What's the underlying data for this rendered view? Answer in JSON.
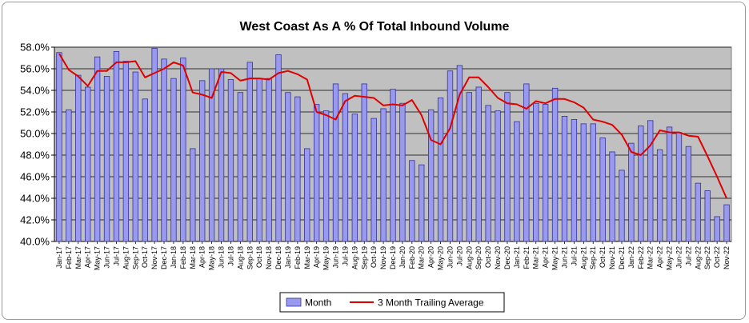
{
  "chart_data": {
    "type": "bar",
    "title": "West Coast As A %  Of Total Inbound Volume",
    "xlabel": "",
    "ylabel": "",
    "ylim": [
      40.0,
      58.0
    ],
    "yticks": [
      "40.0%",
      "42.0%",
      "44.0%",
      "46.0%",
      "48.0%",
      "50.0%",
      "52.0%",
      "54.0%",
      "56.0%",
      "58.0%"
    ],
    "grid": true,
    "legend_position": "bottom",
    "colors": {
      "bar": "#9999ee",
      "bar_edge": "#33339a",
      "line": "#e00000",
      "plot_bg": "#c0c0c0"
    },
    "categories": [
      "Jan-17",
      "Feb-17",
      "Mar-17",
      "Apr-17",
      "May-17",
      "Jun-17",
      "Jul-17",
      "Aug-17",
      "Sep-17",
      "Oct-17",
      "Nov-17",
      "Dec-17",
      "Jan-18",
      "Feb-18",
      "Mar-18",
      "Apr-18",
      "May-18",
      "Jun-18",
      "Jul-18",
      "Aug-18",
      "Sep-18",
      "Oct-18",
      "Nov-18",
      "Dec-18",
      "Jan-19",
      "Feb-19",
      "Mar-19",
      "Apr-19",
      "May-19",
      "Jun-19",
      "Jul-19",
      "Aug-19",
      "Sep-19",
      "Oct-19",
      "Nov-19",
      "Dec-19",
      "Jan-20",
      "Feb-20",
      "Mar-20",
      "Apr-20",
      "May-20",
      "Jun-20",
      "Jul-20",
      "Aug-20",
      "Sep-20",
      "Oct-20",
      "Nov-20",
      "Dec-20",
      "Jan-21",
      "Feb-21",
      "Mar-21",
      "Apr-21",
      "May-21",
      "Jun-21",
      "Jul-21",
      "Aug-21",
      "Sep-21",
      "Oct-21",
      "Nov-21",
      "Dec-21",
      "Jan-22",
      "Feb-22",
      "Mar-22",
      "Apr-22",
      "May-22",
      "Jun-22",
      "Jul-22",
      "Aug-22",
      "Sep-22",
      "Oct-22",
      "Nov-22"
    ],
    "series": [
      {
        "name": "Month",
        "kind": "bar",
        "values": [
          57.5,
          52.2,
          55.4,
          54.3,
          57.1,
          55.3,
          57.6,
          56.7,
          55.7,
          53.2,
          57.9,
          56.9,
          55.1,
          57.0,
          48.6,
          54.9,
          56.0,
          56.0,
          55.0,
          53.8,
          56.6,
          55.1,
          55.1,
          57.3,
          53.8,
          53.4,
          48.6,
          52.7,
          52.1,
          54.6,
          53.7,
          51.8,
          54.6,
          51.4,
          52.3,
          54.1,
          52.8,
          47.5,
          47.1,
          52.2,
          53.3,
          55.8,
          56.3,
          53.8,
          54.3,
          52.6,
          52.1,
          53.8,
          51.1,
          54.6,
          52.8,
          52.7,
          54.2,
          51.6,
          51.3,
          50.9,
          50.9,
          49.6,
          48.3,
          46.6,
          49.1,
          50.7,
          51.2,
          48.5,
          50.6,
          50.1,
          48.8,
          45.4,
          44.7,
          42.3,
          43.4
        ]
      },
      {
        "name": "3 Month Trailing Average",
        "kind": "line",
        "values": [
          57.4,
          55.9,
          55.3,
          54.4,
          55.8,
          55.8,
          56.6,
          56.6,
          56.7,
          55.2,
          55.6,
          56.0,
          56.6,
          56.3,
          53.8,
          53.6,
          53.3,
          55.7,
          55.6,
          54.9,
          55.1,
          55.1,
          55.0,
          55.6,
          55.8,
          55.5,
          55.0,
          52.0,
          51.7,
          51.3,
          53.0,
          53.5,
          53.4,
          53.3,
          52.6,
          52.7,
          52.6,
          53.1,
          51.7,
          49.4,
          49.0,
          50.5,
          53.6,
          55.2,
          55.2,
          54.3,
          53.3,
          52.8,
          52.7,
          52.3,
          53.0,
          52.8,
          53.2,
          53.2,
          52.9,
          52.4,
          51.3,
          51.1,
          50.8,
          49.9,
          48.3,
          48.0,
          48.9,
          50.3,
          50.1,
          50.1,
          49.8,
          49.7,
          47.9,
          46.0,
          44.0
        ]
      }
    ]
  }
}
